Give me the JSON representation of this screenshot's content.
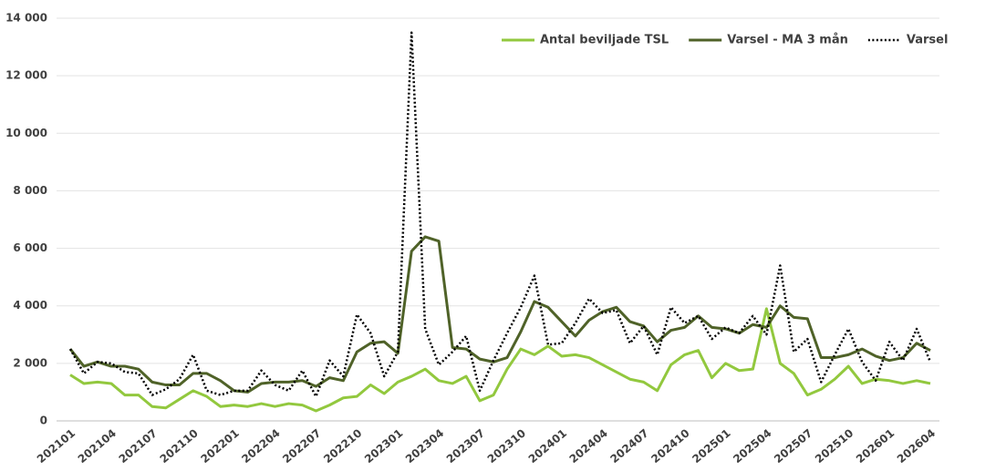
{
  "chart_data": {
    "type": "line",
    "categories": [
      "202101",
      null,
      null,
      "202104",
      null,
      null,
      "202107",
      null,
      null,
      "202110",
      null,
      null,
      "202201",
      null,
      null,
      "202204",
      null,
      null,
      "202207",
      null,
      null,
      "202210",
      null,
      null,
      "202301",
      null,
      null,
      "202304",
      null,
      null,
      "202307",
      null,
      null,
      "202310",
      null,
      null,
      "202401",
      null,
      null,
      "202404",
      null,
      null,
      "202407",
      null,
      null,
      "202410",
      null,
      null,
      "202501",
      null,
      null,
      "202504",
      null,
      null,
      "202507",
      null,
      null,
      "202510",
      null,
      null,
      "202601",
      null,
      null,
      "202604"
    ],
    "series": [
      {
        "name": "Antal beviljade TSL",
        "color": "#92c83e",
        "line_style": "solid",
        "values": [
          1600,
          1300,
          1350,
          1300,
          900,
          900,
          500,
          450,
          750,
          1050,
          850,
          500,
          550,
          500,
          600,
          500,
          600,
          550,
          350,
          550,
          800,
          850,
          1250,
          950,
          1350,
          1550,
          1800,
          1400,
          1300,
          1550,
          700,
          900,
          1800,
          2500,
          2300,
          2600,
          2250,
          2300,
          2200,
          1950,
          1700,
          1450,
          1350,
          1050,
          1950,
          2300,
          2450,
          1500,
          2000,
          1750,
          1800,
          3900,
          2000,
          1650,
          900,
          1100,
          1450,
          1900,
          1300,
          1450,
          1400,
          1300,
          1400,
          1300
        ]
      },
      {
        "name": "Varsel - MA 3 mån",
        "color": "#4f6228",
        "line_style": "solid",
        "values": [
          2500,
          1900,
          2050,
          1900,
          1900,
          1800,
          1350,
          1250,
          1250,
          1650,
          1650,
          1400,
          1050,
          1000,
          1300,
          1350,
          1350,
          1400,
          1200,
          1500,
          1400,
          2400,
          2700,
          2750,
          2350,
          5900,
          6400,
          6250,
          2550,
          2500,
          2150,
          2050,
          2200,
          3100,
          4150,
          3950,
          3450,
          2950,
          3500,
          3800,
          3950,
          3450,
          3300,
          2750,
          3150,
          3250,
          3650,
          3250,
          3200,
          3050,
          3350,
          3250,
          4000,
          3600,
          3550,
          2200,
          2200,
          2300,
          2500,
          2250,
          2100,
          2200,
          2700,
          2450
        ]
      },
      {
        "name": "Varsel",
        "color": "#000000",
        "line_style": "dotted",
        "values": [
          2500,
          1650,
          2050,
          2000,
          1700,
          1650,
          900,
          1100,
          1450,
          2300,
          1050,
          900,
          1050,
          1050,
          1750,
          1250,
          1050,
          1750,
          850,
          2100,
          1550,
          3700,
          3050,
          1550,
          2400,
          13500,
          3200,
          1950,
          2400,
          2950,
          1050,
          2100,
          3050,
          3950,
          5050,
          2650,
          2700,
          3400,
          4250,
          3750,
          3850,
          2700,
          3300,
          2300,
          3950,
          3400,
          3650,
          2850,
          3250,
          3050,
          3650,
          3000,
          5400,
          2400,
          2850,
          1350,
          2300,
          3200,
          2050,
          1400,
          2750,
          2100,
          3200,
          2050
        ]
      }
    ],
    "ylim": [
      0,
      14000
    ],
    "yticks": [
      0,
      {
        "value": 2000,
        "label": "2 000"
      },
      {
        "value": 4000,
        "label": "4 000"
      },
      {
        "value": 6000,
        "label": "6 000"
      },
      {
        "value": 8000,
        "label": "8 000"
      },
      {
        "value": 10000,
        "label": "10 000"
      },
      {
        "value": 12000,
        "label": "12 000"
      },
      {
        "value": 14000,
        "label": "14 000"
      }
    ],
    "grid": true,
    "legend": "top-right"
  }
}
